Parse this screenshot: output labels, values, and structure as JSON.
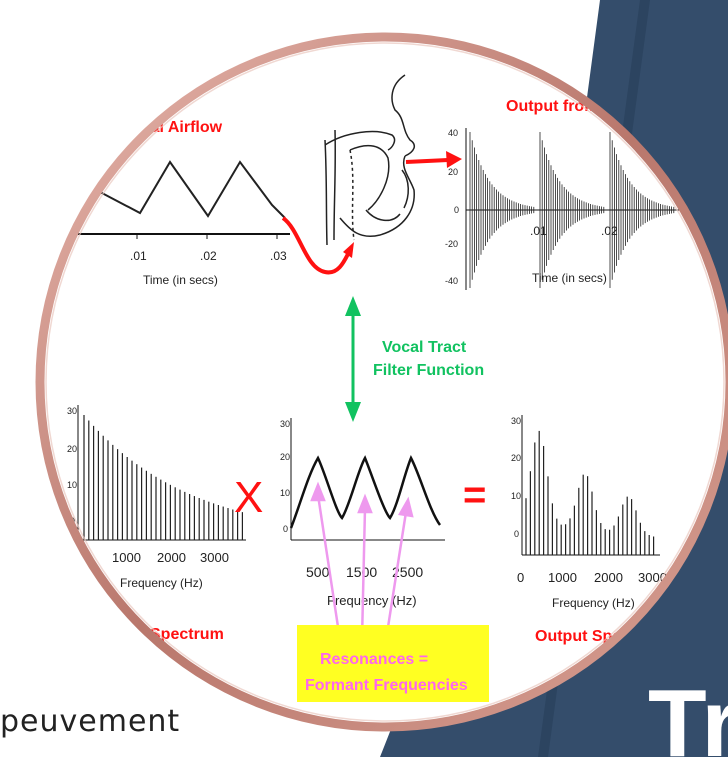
{
  "slide": {
    "bottom_text": "peuvement",
    "corner_text": "Tr",
    "colors": {
      "navy": "#344d6b",
      "ring_copper": "#c98a7e",
      "red": "#ff1111",
      "green": "#11c260",
      "pink": "#ee99ee",
      "yellow_box": "#ffff22",
      "resonance_text": "#ff66ee"
    }
  },
  "diagram": {
    "glottal_label": "ttal Airflow",
    "output_top_label": "Output from lip",
    "vocal_tract_label_1": "Vocal Tract",
    "vocal_tract_label_2": "Filter Function",
    "multiply_sign": "X",
    "equals_sign": "=",
    "source_spectrum_label": "Spectrum",
    "output_spectrum_label": "Output Spect",
    "resonance_label_1": "Resonances =",
    "resonance_label_2": "Formant Frequencies",
    "glottal_plot": {
      "x_ticks": [
        ".01",
        ".02",
        ".03"
      ],
      "x_title": "Time (in secs)",
      "waveform_peaks": [
        0.005,
        0.015,
        0.025
      ]
    },
    "output_plot": {
      "y_ticks": [
        "40",
        "20",
        "0",
        "-20",
        "-40"
      ],
      "x_ticks": [
        ".01",
        ".02"
      ],
      "x_title": "Time (in secs)"
    },
    "source_spectrum": {
      "y_ticks": [
        "30",
        "20",
        "10",
        "0"
      ],
      "x_ticks": [
        "1000",
        "2000",
        "3000"
      ],
      "x_title": "Frequency (Hz)"
    },
    "filter_plot": {
      "y_ticks": [
        "30",
        "20",
        "10",
        "0"
      ],
      "x_ticks": [
        "500",
        "1500",
        "2500"
      ],
      "x_title": "Frequency (Hz)",
      "formant_peaks_hz": [
        500,
        1500,
        2500
      ]
    },
    "output_spectrum": {
      "y_ticks": [
        "30",
        "20",
        "10",
        "0"
      ],
      "x_ticks": [
        "0",
        "1000",
        "2000",
        "3000"
      ],
      "x_title": "Frequency (Hz)"
    }
  }
}
